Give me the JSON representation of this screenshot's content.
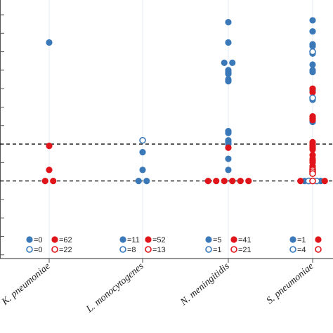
{
  "chart_data": {
    "type": "scatter",
    "title": "",
    "xlabel": "",
    "ylabel": "",
    "categories": [
      "K. pneumoniae",
      "L. monocytogenes",
      "N. meningitidis",
      "S. pneumoniae"
    ],
    "reference_lines": [
      1.0,
      2.0
    ],
    "ylim": [
      -1.1,
      5.9
    ],
    "colors": {
      "blue": "#3a78b8",
      "red": "#e0151b",
      "axis": "#555555",
      "ref_line": "#111111",
      "grid": "#e3e8f0"
    },
    "series": [
      {
        "marker": "filled-blue",
        "points": [
          [
            0,
            4.75
          ],
          [
            1,
            1.78
          ],
          [
            1,
            1.3
          ],
          [
            1,
            1.0
          ],
          [
            1,
            1.0
          ],
          [
            2,
            5.3
          ],
          [
            2,
            4.75
          ],
          [
            2,
            4.2
          ],
          [
            2,
            4.2
          ],
          [
            2,
            4.0
          ],
          [
            2,
            3.95
          ],
          [
            2,
            3.9
          ],
          [
            2,
            3.75
          ],
          [
            2,
            3.7
          ],
          [
            2,
            2.35
          ],
          [
            2,
            2.3
          ],
          [
            2,
            2.1
          ],
          [
            2,
            2.05
          ],
          [
            2,
            2.0
          ],
          [
            2,
            1.6
          ],
          [
            2,
            1.3
          ],
          [
            3,
            5.35
          ],
          [
            3,
            5.05
          ],
          [
            3,
            4.7
          ],
          [
            3,
            4.65
          ],
          [
            3,
            4.45
          ],
          [
            3,
            4.15
          ],
          [
            3,
            4.0
          ],
          [
            3,
            3.95
          ],
          [
            3,
            3.45
          ],
          [
            3,
            3.2
          ],
          [
            3,
            2.7
          ],
          [
            3,
            2.65
          ],
          [
            3,
            2.6
          ],
          [
            3,
            1.0
          ],
          [
            3,
            1.0
          ],
          [
            3,
            1.0
          ]
        ]
      },
      {
        "marker": "filled-red",
        "points": [
          [
            0,
            1.95
          ],
          [
            0,
            1.3
          ],
          [
            0,
            1.0
          ],
          [
            0,
            1.0
          ],
          [
            2,
            1.9
          ],
          [
            2,
            1.0
          ],
          [
            2,
            1.0
          ],
          [
            2,
            1.0
          ],
          [
            2,
            1.0
          ],
          [
            2,
            1.0
          ],
          [
            2,
            1.0
          ],
          [
            3,
            3.5
          ],
          [
            3,
            3.4
          ],
          [
            3,
            2.75
          ],
          [
            3,
            2.7
          ],
          [
            3,
            2.65
          ],
          [
            3,
            2.05
          ],
          [
            3,
            2.0
          ],
          [
            3,
            1.95
          ],
          [
            3,
            1.9
          ],
          [
            3,
            1.85
          ],
          [
            3,
            1.7
          ],
          [
            3,
            1.6
          ],
          [
            3,
            1.55
          ],
          [
            3,
            1.5
          ],
          [
            3,
            1.4
          ],
          [
            3,
            1.35
          ],
          [
            3,
            1.3
          ],
          [
            3,
            1.25
          ],
          [
            3,
            1.0
          ],
          [
            3,
            1.0
          ],
          [
            3,
            1.0
          ],
          [
            3,
            1.0
          ]
        ]
      },
      {
        "marker": "open-blue",
        "points": [
          [
            1,
            2.1
          ],
          [
            3,
            4.5
          ],
          [
            3,
            3.25
          ],
          [
            3,
            1.0
          ],
          [
            3,
            1.0
          ]
        ]
      },
      {
        "marker": "open-red",
        "points": [
          [
            3,
            1.3
          ],
          [
            3,
            1.25
          ],
          [
            3,
            1.2
          ],
          [
            3,
            1.0
          ]
        ]
      }
    ],
    "legend_entries": [
      {
        "filled_blue": "=0",
        "filled_red": "=62",
        "open_blue": "=0",
        "open_red": "=22"
      },
      {
        "filled_blue": "=11",
        "filled_red": "=52",
        "open_blue": "=8",
        "open_red": "=13"
      },
      {
        "filled_blue": "=5",
        "filled_red": "=41",
        "open_blue": "=1",
        "open_red": "=21"
      },
      {
        "filled_blue": "=1",
        "filled_red": "",
        "open_blue": "=4",
        "open_red": ""
      }
    ]
  }
}
